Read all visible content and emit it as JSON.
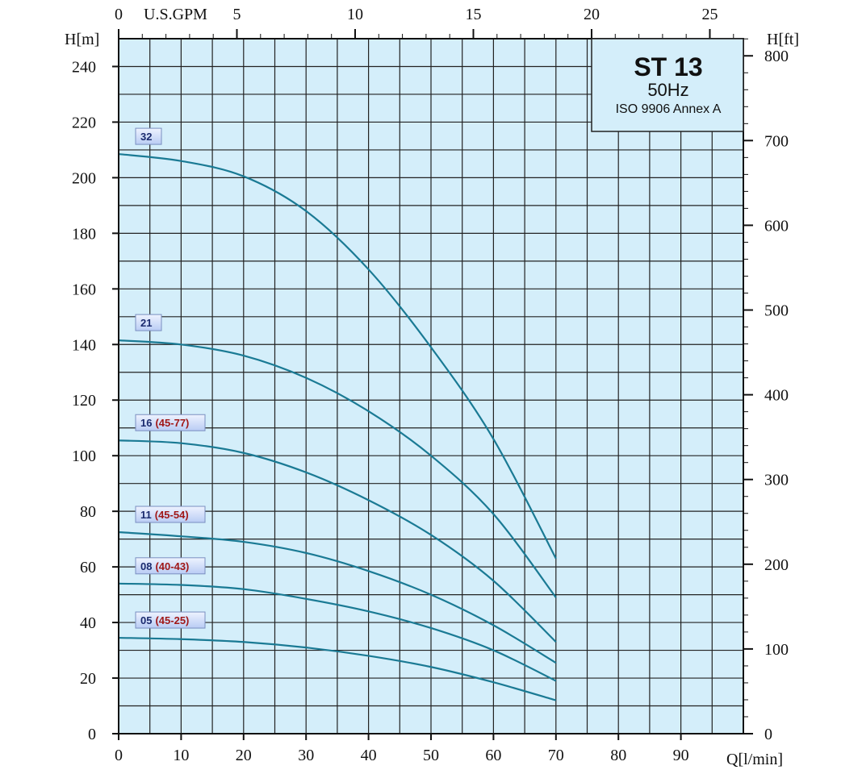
{
  "title_box": {
    "model": "ST 13",
    "frequency": "50Hz",
    "standard": "ISO 9906 Annex A"
  },
  "chart_data": {
    "type": "line",
    "xlabel": "Q[l/min]",
    "ylabel_left": "H[m]",
    "ylabel_right": "H[ft]",
    "xlabel_top": "U.S.GPM",
    "xlim": [
      0,
      100
    ],
    "ylim": [
      0,
      250
    ],
    "x_ticks": [
      0,
      10,
      20,
      30,
      40,
      50,
      60,
      70,
      80,
      90
    ],
    "y_ticks": [
      0,
      20,
      40,
      60,
      80,
      100,
      120,
      140,
      160,
      180,
      200,
      220,
      240
    ],
    "y_right_ticks": [
      0,
      100,
      200,
      300,
      400,
      500,
      600,
      700,
      800
    ],
    "x_top_ticks": [
      0,
      5,
      10,
      15,
      20,
      25
    ],
    "grid": true,
    "colors": {
      "background": "#d4eefa",
      "curve": "#1a7a94",
      "grid": "#222222",
      "label_stage": "#1a2a6e",
      "label_range": "#a01818"
    },
    "x": [
      0,
      10,
      20,
      30,
      40,
      50,
      60,
      70
    ],
    "series": [
      {
        "name": "32",
        "range": "",
        "values": [
          208.5,
          206,
          200.5,
          188,
          167,
          139,
          106,
          63
        ]
      },
      {
        "name": "21",
        "range": "",
        "values": [
          141.5,
          140,
          136,
          128,
          116,
          100,
          79,
          49
        ]
      },
      {
        "name": "16",
        "range": "(45-77)",
        "values": [
          105.5,
          104.5,
          101,
          94,
          84,
          71.5,
          55,
          33
        ]
      },
      {
        "name": "11",
        "range": "(45-54)",
        "values": [
          72.5,
          71,
          69,
          65,
          58.5,
          50,
          39,
          25.5
        ]
      },
      {
        "name": "08",
        "range": "(40-43)",
        "values": [
          54,
          53.5,
          52,
          48.5,
          44,
          38,
          30,
          19
        ]
      },
      {
        "name": "05",
        "range": "(45-25)",
        "values": [
          34.5,
          34,
          33,
          31,
          28,
          24,
          18.5,
          12
        ]
      }
    ]
  }
}
